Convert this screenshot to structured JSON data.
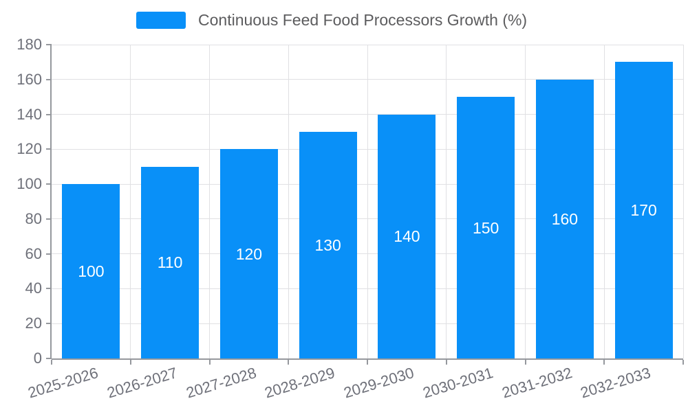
{
  "chart_data": {
    "type": "bar",
    "categories": [
      "2025-2026",
      "2026-2027",
      "2027-2028",
      "2028-2029",
      "2029-2030",
      "2030-2031",
      "2031-2032",
      "2032-2033"
    ],
    "series": [
      {
        "name": "Continuous Feed Food Processors Growth (%)",
        "values": [
          100,
          110,
          120,
          130,
          140,
          150,
          160,
          170
        ]
      }
    ],
    "title": "",
    "xlabel": "",
    "ylabel": "",
    "ylim": [
      0,
      180
    ],
    "ytick_step": 20,
    "yticks": [
      0,
      20,
      40,
      60,
      80,
      100,
      120,
      140,
      160,
      180
    ],
    "grid": true,
    "legend_position": "top",
    "bar_labels_position": "inside-center",
    "colors": {
      "bar": "#0990f8",
      "bar_label": "#ffffff",
      "axis_label": "#6e7079",
      "legend_text": "#5c5c5e",
      "gridline": "#e0e0e3",
      "axis_line": "#95989d"
    }
  }
}
